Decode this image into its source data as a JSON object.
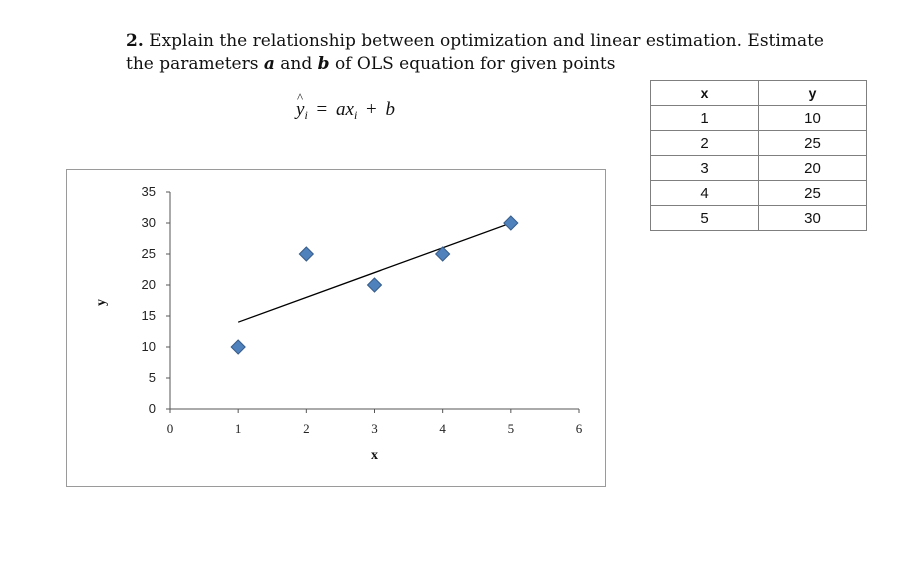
{
  "question": {
    "number": "2.",
    "text_before_a": " Explain the relationship between optimization and linear estimation. Estimate the parameters ",
    "var_a": "a",
    "text_and": " and ",
    "var_b": "b",
    "text_after": " of OLS equation for given points"
  },
  "equation": {
    "lhs": "y",
    "lhs_sub": "i",
    "equals": "=",
    "coef": "a",
    "x": "x",
    "x_sub": "i",
    "plus": "+",
    "intercept": "b"
  },
  "table": {
    "headers": [
      "x",
      "y"
    ],
    "rows": [
      [
        "1",
        "10"
      ],
      [
        "2",
        "25"
      ],
      [
        "3",
        "20"
      ],
      [
        "4",
        "25"
      ],
      [
        "5",
        "30"
      ]
    ]
  },
  "chart_data": {
    "type": "scatter",
    "title": "",
    "xlabel": "x",
    "ylabel": "y",
    "xlim": [
      0,
      6
    ],
    "ylim": [
      0,
      35
    ],
    "xticks": [
      0,
      1,
      2,
      3,
      4,
      5,
      6
    ],
    "yticks": [
      0,
      5,
      10,
      15,
      20,
      25,
      30,
      35
    ],
    "grid": false,
    "legend": "none",
    "marker_color": "#4f81bd",
    "marker_edge_color": "#385d8a",
    "series": [
      {
        "x": [
          1,
          2,
          3,
          4,
          5
        ],
        "y": [
          10,
          25,
          20,
          25,
          30
        ]
      }
    ],
    "fit_line": {
      "color": "#000000",
      "points": [
        [
          1,
          14
        ],
        [
          5,
          30
        ]
      ]
    }
  }
}
